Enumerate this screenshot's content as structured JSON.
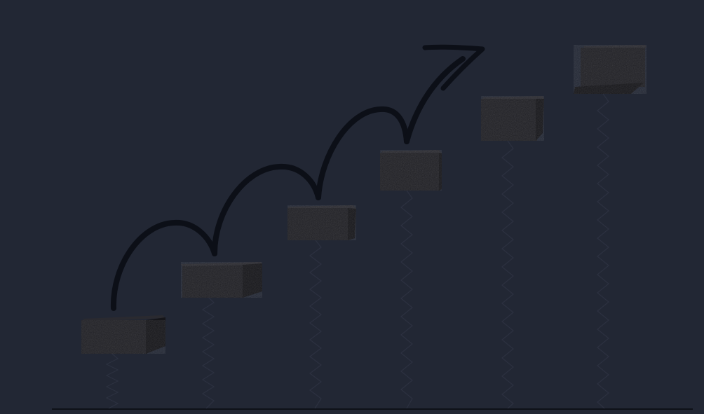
{
  "image": {
    "subject": "growth-steps-illustration",
    "colors": {
      "background": "#222734",
      "block_front": "#1f1f24",
      "block_top": "#2a2a30",
      "block_side": "#141418",
      "spring": "#2a2e3a",
      "arrow": "#0c0f17",
      "ground_line": "#0e1118"
    },
    "blocks": [
      {
        "label": "step-1"
      },
      {
        "label": "step-2"
      },
      {
        "label": "step-3"
      },
      {
        "label": "step-4"
      },
      {
        "label": "step-5"
      },
      {
        "label": "step-6"
      }
    ],
    "arrow": {
      "direction": "up-right",
      "hops": 4
    }
  }
}
